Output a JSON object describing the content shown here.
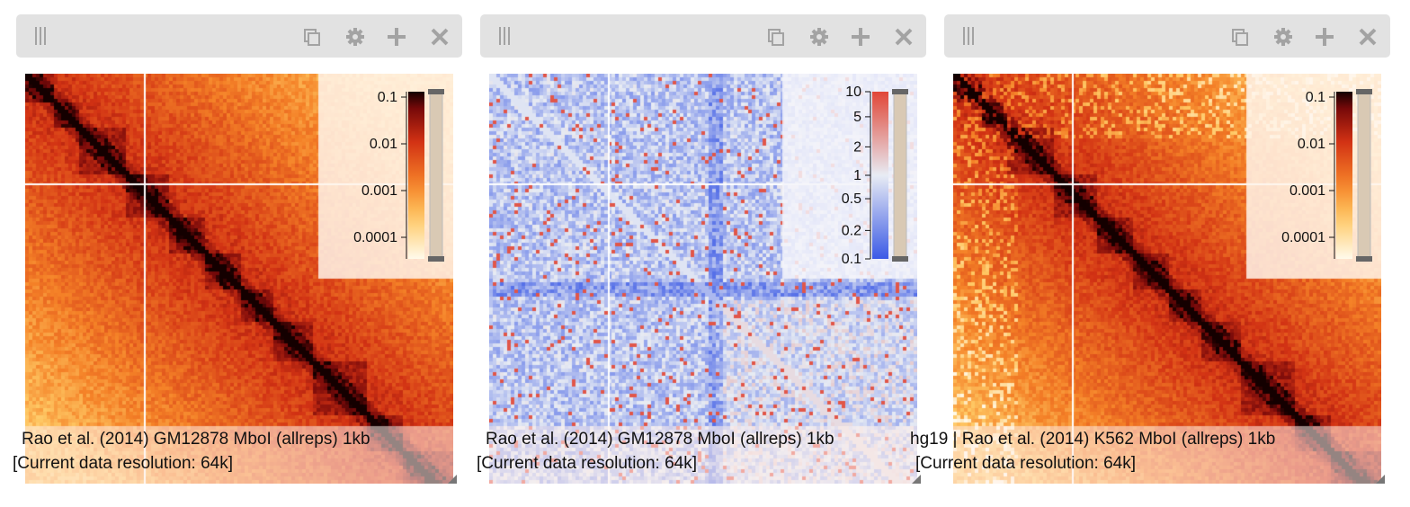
{
  "panels": [
    {
      "id": "gm12878",
      "label_line1": "Rao et al. (2014) GM12878 MboI (allreps) 1kb",
      "label_line2": "[Current data resolution: 64k]",
      "colorbar": {
        "type": "log",
        "ticks": [
          "0.1",
          "0.01",
          "0.001",
          "0.0001"
        ]
      },
      "palette": "fall"
    },
    {
      "id": "ratio",
      "label_line1": "Rao et al. (2014) GM12878 MboI (allreps) 1kb",
      "label_line2": "[Current data resolution: 64k]",
      "colorbar": {
        "type": "divergent",
        "ticks": [
          "10",
          "5",
          "2",
          "1",
          "0.5",
          "0.2",
          "0.1"
        ]
      },
      "palette": "coolwarm"
    },
    {
      "id": "k562",
      "label_line1": "hg19 | Rao et al. (2014) K562 MboI (allreps) 1kb",
      "label_line2": "[Current data resolution: 64k]",
      "colorbar": {
        "type": "log",
        "ticks": [
          "0.1",
          "0.01",
          "0.001",
          "0.0001"
        ]
      },
      "palette": "fall"
    }
  ],
  "colors": {
    "header_bg": "#e2e2e2",
    "icon": "#a3a3a3",
    "crosshair": "#ffffff"
  },
  "icons": [
    "grip-icon",
    "copy-icon",
    "gear-icon",
    "plus-icon",
    "close-icon"
  ]
}
